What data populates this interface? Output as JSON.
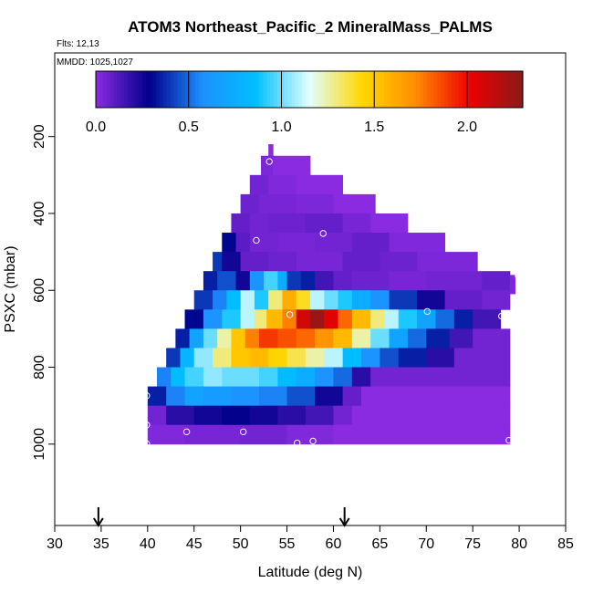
{
  "chart_data": {
    "type": "heatmap",
    "title": "ATOM3 Northeast_Pacific_2 MineralMass_PALMS",
    "flights_label": "Flts: 12,13",
    "mmdd_label": "MMDD: 1025,1027",
    "xlabel": "Latitude (deg N)",
    "ylabel": "PSXC (mbar)",
    "xlim": [
      30,
      85
    ],
    "ylim": [
      1000,
      100
    ],
    "xticks": [
      "30",
      "35",
      "40",
      "45",
      "50",
      "55",
      "60",
      "65",
      "70",
      "75",
      "80",
      "85"
    ],
    "yticks": [
      "200",
      "400",
      "600",
      "800",
      "1000"
    ],
    "colorbar": {
      "range": [
        0,
        2.3
      ],
      "ticks": [
        "0.0",
        "0.5",
        "1.0",
        "1.5",
        "2.0"
      ],
      "colors": [
        "#8a2be2",
        "#00008b",
        "#1e90ff",
        "#00bfff",
        "#e0ffff",
        "#ffd700",
        "#ff8c00",
        "#ee0000",
        "#8b1a1a"
      ]
    },
    "arrows_lat": [
      34.7,
      61.2
    ],
    "rows": [
      {
        "p0": 220,
        "p1": 250,
        "segs": [
          [
            53,
            53.5,
            0.0
          ]
        ]
      },
      {
        "p0": 250,
        "p1": 300,
        "segs": [
          [
            52.2,
            53.5,
            0.03
          ],
          [
            53.5,
            57.5,
            0.0
          ]
        ]
      },
      {
        "p0": 300,
        "p1": 350,
        "segs": [
          [
            51,
            53,
            0.05
          ],
          [
            53,
            56,
            0.02
          ],
          [
            56,
            61,
            0.0
          ]
        ]
      },
      {
        "p0": 350,
        "p1": 400,
        "segs": [
          [
            50,
            52,
            0.06
          ],
          [
            52,
            56,
            0.04
          ],
          [
            56,
            60,
            0.03
          ],
          [
            60,
            64.5,
            0.0
          ]
        ]
      },
      {
        "p0": 400,
        "p1": 450,
        "segs": [
          [
            49,
            51,
            0.08
          ],
          [
            51,
            53,
            0.05
          ],
          [
            53,
            57,
            0.06
          ],
          [
            57,
            61,
            0.08
          ],
          [
            61,
            64,
            0.04
          ],
          [
            64,
            68,
            0.0
          ]
        ]
      },
      {
        "p0": 450,
        "p1": 500,
        "segs": [
          [
            48,
            49.5,
            0.3
          ],
          [
            49.5,
            51,
            0.1
          ],
          [
            51,
            54,
            0.05
          ],
          [
            54,
            58,
            0.04
          ],
          [
            58,
            62,
            0.05
          ],
          [
            62,
            66,
            0.08
          ],
          [
            66,
            72,
            0.02
          ]
        ]
      },
      {
        "p0": 500,
        "p1": 550,
        "segs": [
          [
            47,
            48,
            0.4
          ],
          [
            48,
            50,
            0.25
          ],
          [
            50,
            53,
            0.08
          ],
          [
            53,
            56,
            0.06
          ],
          [
            56,
            61,
            0.04
          ],
          [
            61,
            65,
            0.08
          ],
          [
            65,
            69,
            0.06
          ],
          [
            69,
            75.5,
            0.03
          ]
        ]
      },
      {
        "p0": 550,
        "p1": 600,
        "segs": [
          [
            46,
            47.5,
            0.35
          ],
          [
            47.5,
            49.5,
            0.45
          ],
          [
            49.5,
            51,
            0.25
          ],
          [
            51,
            52.5,
            0.6
          ],
          [
            52.5,
            54,
            0.95
          ],
          [
            54,
            55,
            0.75
          ],
          [
            55,
            56.5,
            0.4
          ],
          [
            56.5,
            58,
            0.35
          ],
          [
            58,
            60,
            0.15
          ],
          [
            60,
            62,
            0.08
          ],
          [
            62,
            66,
            0.06
          ],
          [
            66,
            70,
            0.04
          ],
          [
            70,
            76,
            0.05
          ],
          [
            76,
            79,
            0.08
          ]
        ]
      },
      {
        "p0": 600,
        "p1": 650,
        "segs": [
          [
            45,
            47,
            0.4
          ],
          [
            47,
            48.5,
            0.55
          ],
          [
            48.5,
            50,
            0.85
          ],
          [
            50,
            51.5,
            1.1
          ],
          [
            51.5,
            53,
            0.9
          ],
          [
            53,
            54.5,
            1.3
          ],
          [
            54.5,
            56,
            1.6
          ],
          [
            56,
            57.5,
            1.4
          ],
          [
            57.5,
            59,
            1.1
          ],
          [
            59,
            60.5,
            1.0
          ],
          [
            60.5,
            62,
            0.9
          ],
          [
            62,
            64,
            0.75
          ],
          [
            64,
            66,
            0.6
          ],
          [
            66,
            69,
            0.4
          ],
          [
            69,
            72,
            0.25
          ],
          [
            72,
            76,
            0.08
          ],
          [
            76,
            79,
            0.05
          ]
        ]
      },
      {
        "p0": 650,
        "p1": 700,
        "segs": [
          [
            44,
            46,
            0.3
          ],
          [
            46,
            48,
            0.6
          ],
          [
            48,
            50,
            0.9
          ],
          [
            50,
            51.5,
            1.1
          ],
          [
            51.5,
            52.8,
            1.3
          ],
          [
            52.8,
            54.5,
            1.55
          ],
          [
            54.5,
            56,
            1.75
          ],
          [
            56,
            57.5,
            2.1
          ],
          [
            57.5,
            59,
            2.25
          ],
          [
            59,
            60.5,
            2.05
          ],
          [
            60.5,
            62,
            1.8
          ],
          [
            62,
            64,
            1.55
          ],
          [
            64,
            65.5,
            1.3
          ],
          [
            65.5,
            67,
            1.1
          ],
          [
            67,
            69,
            0.9
          ],
          [
            69,
            71,
            0.7
          ],
          [
            71,
            73,
            0.5
          ],
          [
            73,
            75,
            0.35
          ],
          [
            75,
            78,
            0.15
          ]
        ]
      },
      {
        "p0": 700,
        "p1": 750,
        "segs": [
          [
            43,
            44.5,
            0.35
          ],
          [
            44.5,
            46,
            0.7
          ],
          [
            46,
            47.5,
            1.0
          ],
          [
            47.5,
            49,
            1.25
          ],
          [
            49,
            50.5,
            1.5
          ],
          [
            50.5,
            52,
            1.75
          ],
          [
            52,
            54,
            1.9
          ],
          [
            54,
            56,
            1.85
          ],
          [
            56,
            58,
            1.8
          ],
          [
            58,
            60,
            1.7
          ],
          [
            60,
            62,
            1.55
          ],
          [
            62,
            64,
            1.25
          ],
          [
            64,
            66,
            1.0
          ],
          [
            66,
            68,
            0.7
          ],
          [
            68,
            70,
            0.5
          ],
          [
            70,
            72.5,
            0.35
          ],
          [
            72.5,
            75,
            0.15
          ],
          [
            75,
            79,
            0.05
          ]
        ]
      },
      {
        "p0": 750,
        "p1": 800,
        "segs": [
          [
            42,
            43.5,
            0.4
          ],
          [
            43.5,
            45,
            0.8
          ],
          [
            45,
            47,
            1.05
          ],
          [
            47,
            49,
            1.3
          ],
          [
            49,
            51,
            1.5
          ],
          [
            51,
            53,
            1.55
          ],
          [
            53,
            55,
            1.45
          ],
          [
            55,
            57,
            1.35
          ],
          [
            57,
            59,
            1.25
          ],
          [
            59,
            61,
            1.1
          ],
          [
            61,
            63,
            0.85
          ],
          [
            63,
            65,
            0.6
          ],
          [
            65,
            67,
            0.45
          ],
          [
            67,
            70,
            0.35
          ],
          [
            70,
            73,
            0.2
          ],
          [
            73,
            79,
            0.05
          ]
        ]
      },
      {
        "p0": 800,
        "p1": 850,
        "segs": [
          [
            41,
            42.5,
            0.55
          ],
          [
            42.5,
            44,
            0.85
          ],
          [
            44,
            46,
            0.95
          ],
          [
            46,
            48,
            1.05
          ],
          [
            48,
            50,
            1.0
          ],
          [
            50,
            52,
            1.0
          ],
          [
            52,
            54,
            0.95
          ],
          [
            54,
            56,
            0.85
          ],
          [
            56,
            58,
            0.75
          ],
          [
            58,
            60,
            0.6
          ],
          [
            60,
            62,
            0.5
          ],
          [
            62,
            64,
            0.2
          ],
          [
            64,
            79,
            0.05
          ]
        ]
      },
      {
        "p0": 850,
        "p1": 900,
        "segs": [
          [
            40,
            42,
            0.35
          ],
          [
            42,
            44,
            0.55
          ],
          [
            44,
            46,
            0.7
          ],
          [
            46,
            49,
            0.65
          ],
          [
            49,
            52,
            0.6
          ],
          [
            52,
            55,
            0.55
          ],
          [
            55,
            58,
            0.45
          ],
          [
            58,
            61,
            0.25
          ],
          [
            61,
            63,
            0.08
          ],
          [
            63,
            79,
            0.0
          ]
        ]
      },
      {
        "p0": 900,
        "p1": 950,
        "segs": [
          [
            40,
            42,
            0.05
          ],
          [
            42,
            45,
            0.2
          ],
          [
            45,
            48,
            0.25
          ],
          [
            48,
            51,
            0.28
          ],
          [
            51,
            54,
            0.25
          ],
          [
            54,
            57,
            0.2
          ],
          [
            57,
            60,
            0.15
          ],
          [
            60,
            62,
            0.05
          ],
          [
            62,
            79,
            0.0
          ]
        ]
      },
      {
        "p0": 950,
        "p1": 1000,
        "segs": [
          [
            40,
            44,
            0.02
          ],
          [
            44,
            50,
            0.04
          ],
          [
            50,
            55,
            0.05
          ],
          [
            55,
            60,
            0.02
          ],
          [
            60,
            79,
            0.0
          ]
        ]
      }
    ],
    "extra_cells": [
      {
        "p0": 560,
        "p1": 610,
        "lat0": 79,
        "lat1": 79.6,
        "v": 0.03
      }
    ],
    "sample_points": [
      {
        "lat": 53.1,
        "p": 265
      },
      {
        "lat": 51.7,
        "p": 470
      },
      {
        "lat": 58.9,
        "p": 452
      },
      {
        "lat": 55.3,
        "p": 663
      },
      {
        "lat": 70.1,
        "p": 655
      },
      {
        "lat": 78.1,
        "p": 667
      },
      {
        "lat": 79.9,
        "p": 563
      },
      {
        "lat": 39.9,
        "p": 874
      },
      {
        "lat": 39.9,
        "p": 950
      },
      {
        "lat": 44.2,
        "p": 968
      },
      {
        "lat": 50.3,
        "p": 968
      },
      {
        "lat": 56.1,
        "p": 997
      },
      {
        "lat": 57.8,
        "p": 992
      },
      {
        "lat": 39.9,
        "p": 999
      },
      {
        "lat": 78.9,
        "p": 990
      }
    ]
  }
}
